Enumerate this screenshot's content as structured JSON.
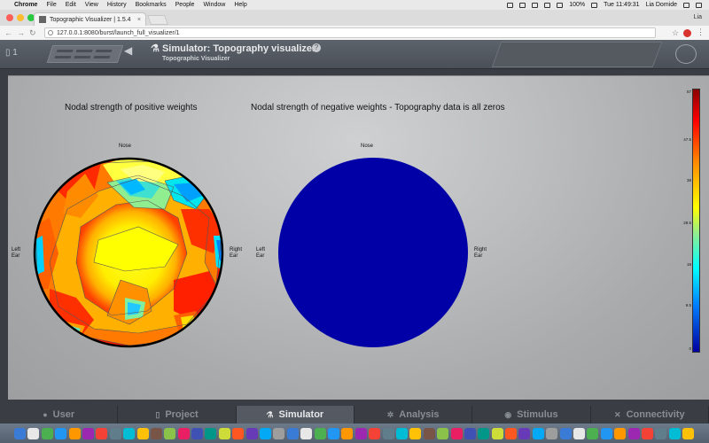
{
  "menubar": {
    "app": "Chrome",
    "items": [
      "File",
      "Edit",
      "View",
      "History",
      "Bookmarks",
      "People",
      "Window",
      "Help"
    ],
    "battery": "100%",
    "clock": "Tue 11:49:31",
    "user": "Lia Domide"
  },
  "browser": {
    "tab_title": "Topographic Visualizer | 1.5.4",
    "profile": "Lia",
    "url": "127.0.0.1:8080/burst/launch_full_visualizer/1"
  },
  "header": {
    "project_number": "1",
    "title": "Simulator: Topography visualizer",
    "subtitle": "Topographic Visualizer",
    "help": "?"
  },
  "plots": [
    {
      "title": "Nodal strength of positive weights",
      "nose": "Nose",
      "left_ear": "Left\nEar",
      "right_ear": "Right\nEar"
    },
    {
      "title": "Nodal strength of negative weights - Topography data is all zeros",
      "nose": "Nose",
      "left_ear": "Left\nEar",
      "right_ear": "Right\nEar"
    }
  ],
  "colorbar": {
    "ticks": [
      "57",
      "47.5",
      "38",
      "28.5",
      "19",
      "9.5",
      "0"
    ]
  },
  "nav": {
    "items": [
      {
        "label": "User",
        "icon": "user-icon"
      },
      {
        "label": "Project",
        "icon": "document-icon"
      },
      {
        "label": "Simulator",
        "icon": "flask-icon",
        "active": true
      },
      {
        "label": "Analysis",
        "icon": "gear-icon"
      },
      {
        "label": "Stimulus",
        "icon": "pin-icon"
      },
      {
        "label": "Connectivity",
        "icon": "network-icon"
      }
    ]
  },
  "colors": {
    "accent_blue": "#0000a6",
    "hot_red": "#ff0000",
    "yellow": "#ffff00"
  }
}
